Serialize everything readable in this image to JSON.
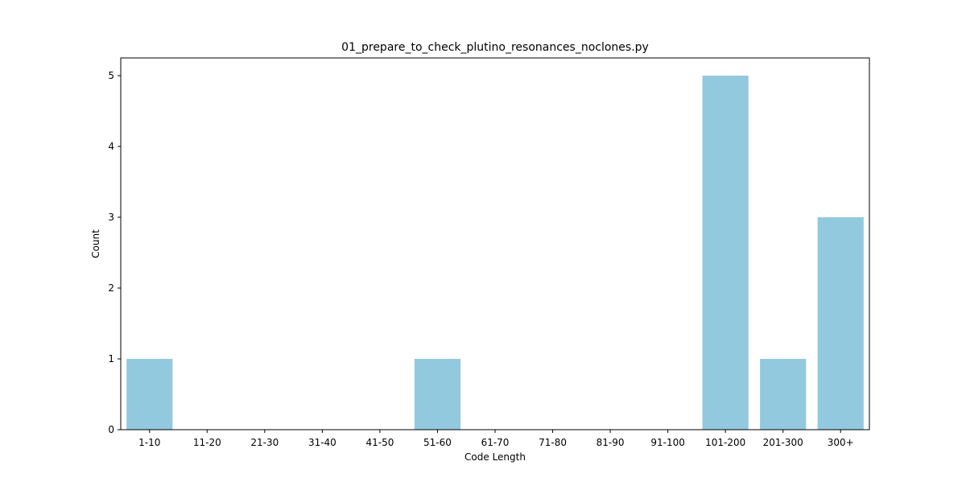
{
  "chart_data": {
    "type": "bar",
    "title": "01_prepare_to_check_plutino_resonances_noclones.py",
    "xlabel": "Code Length",
    "ylabel": "Count",
    "categories": [
      "1-10",
      "11-20",
      "21-30",
      "31-40",
      "41-50",
      "51-60",
      "61-70",
      "71-80",
      "81-90",
      "91-100",
      "101-200",
      "201-300",
      "300+"
    ],
    "values": [
      1,
      0,
      0,
      0,
      0,
      1,
      0,
      0,
      0,
      0,
      5,
      1,
      3
    ],
    "yticks": [
      0,
      1,
      2,
      3,
      4,
      5
    ],
    "ylim": [
      0,
      5.25
    ],
    "grid": false,
    "bar_color": "#92c9df"
  }
}
